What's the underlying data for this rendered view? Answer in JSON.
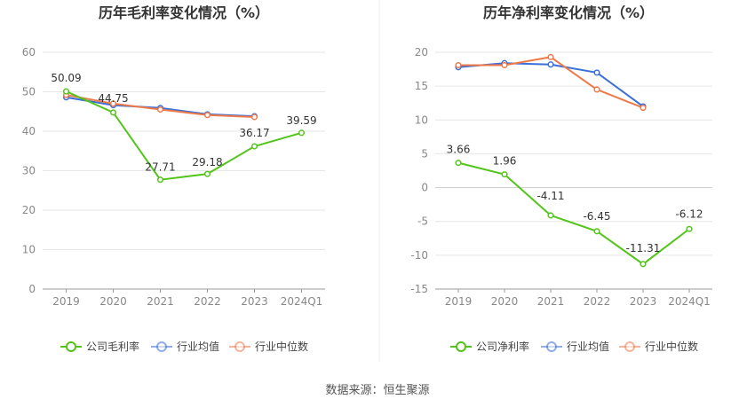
{
  "footer": {
    "source": "数据来源：恒生聚源"
  },
  "colors": {
    "company": "#52c41a",
    "avg": "#3a6fd8",
    "median": "#ee7a4a",
    "axis": "#888888",
    "grid": "#e6e6e6",
    "title": "#333333"
  },
  "chart_data": [
    {
      "type": "line",
      "title": "历年毛利率变化情况（%）",
      "categories": [
        "2019",
        "2020",
        "2021",
        "2022",
        "2023",
        "2024Q1"
      ],
      "ylim": [
        0,
        60
      ],
      "yticks": [
        "0",
        "10",
        "20",
        "30",
        "40",
        "50",
        "60"
      ],
      "grid": true,
      "legend_position": "bottom",
      "series": [
        {
          "name": "公司毛利率",
          "color": "#52c41a",
          "values": [
            50.09,
            44.75,
            27.71,
            29.18,
            36.17,
            39.59
          ],
          "labels": [
            "50.09",
            "44.75",
            "27.71",
            "29.18",
            "36.17",
            "39.59"
          ]
        },
        {
          "name": "行业均值",
          "color": "#3a6fd8",
          "values": [
            48.6,
            46.6,
            45.9,
            44.3,
            43.8,
            null
          ]
        },
        {
          "name": "行业中位数",
          "color": "#ee7a4a",
          "values": [
            49.2,
            47.0,
            45.5,
            44.1,
            43.6,
            null
          ]
        }
      ]
    },
    {
      "type": "line",
      "title": "历年净利率变化情况（%）",
      "categories": [
        "2019",
        "2020",
        "2021",
        "2022",
        "2023",
        "2024Q1"
      ],
      "ylim": [
        -15,
        20
      ],
      "yticks": [
        "-15",
        "-10",
        "-5",
        "0",
        "5",
        "10",
        "15",
        "20"
      ],
      "grid": true,
      "legend_position": "bottom",
      "series": [
        {
          "name": "公司净利率",
          "color": "#52c41a",
          "values": [
            3.66,
            1.96,
            -4.11,
            -6.45,
            -11.31,
            -6.12
          ],
          "labels": [
            "3.66",
            "1.96",
            "-4.11",
            "-6.45",
            "-11.31",
            "-6.12"
          ]
        },
        {
          "name": "行业均值",
          "color": "#3a6fd8",
          "values": [
            17.8,
            18.4,
            18.2,
            17.0,
            12.0,
            null
          ]
        },
        {
          "name": "行业中位数",
          "color": "#ee7a4a",
          "values": [
            18.1,
            18.1,
            19.3,
            14.5,
            11.8,
            null
          ]
        }
      ]
    }
  ]
}
